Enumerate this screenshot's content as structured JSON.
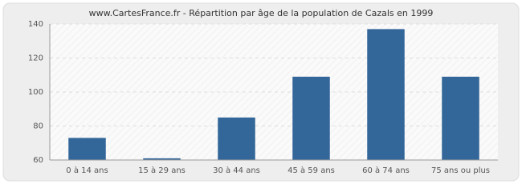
{
  "chart_data": {
    "type": "bar",
    "title": "www.CartesFrance.fr - Répartition par âge de la population de Cazals en 1999",
    "categories": [
      "0 à 14 ans",
      "15 à 29 ans",
      "30 à 44 ans",
      "45 à 59 ans",
      "60 à 74 ans",
      "75 ans ou plus"
    ],
    "values": [
      73,
      61,
      85,
      109,
      137,
      109
    ],
    "color": "#336699",
    "ylim": [
      60,
      140
    ],
    "yticks": [
      60,
      80,
      100,
      120,
      140
    ],
    "grid": true
  }
}
